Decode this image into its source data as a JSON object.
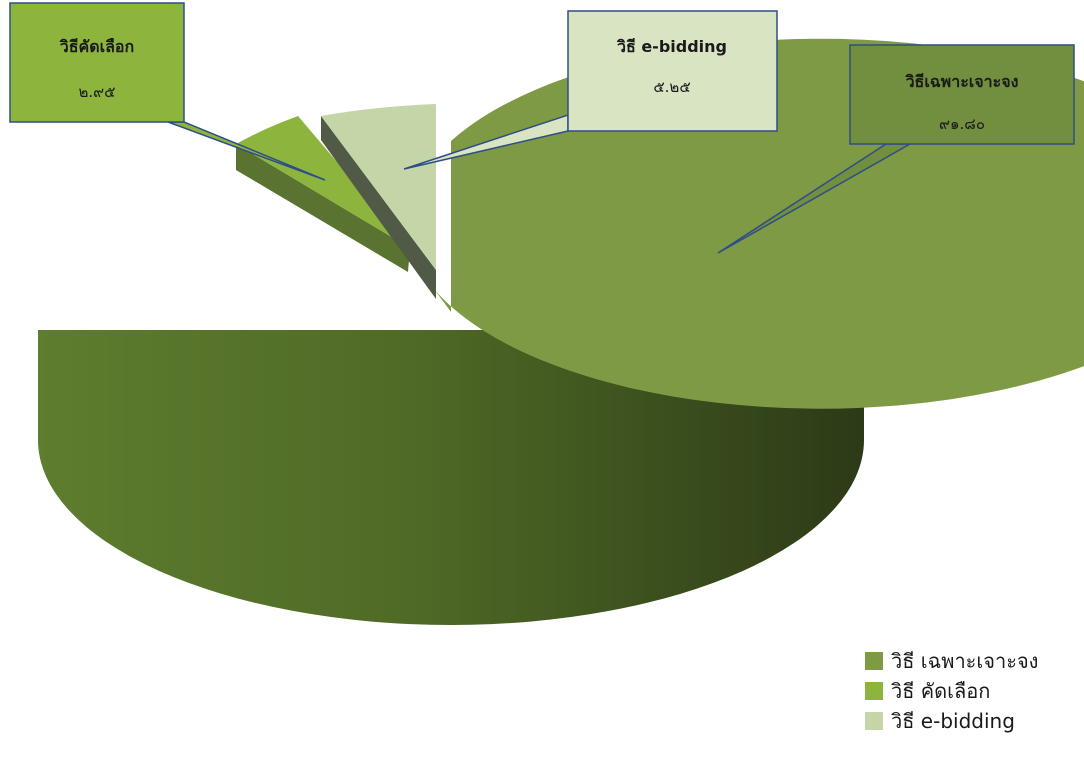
{
  "chart_data": {
    "type": "pie",
    "title": "",
    "slices": [
      {
        "name": "วิธีเฉพาะเจาะจง",
        "legend": "วิธี เฉพาะเจาะจง",
        "value": 91.8,
        "value_label": "๙๑.๘๐",
        "color": "#7F9A44"
      },
      {
        "name": "วิธีคัดเลือก",
        "legend": "วิธี คัดเลือก",
        "value": 2.95,
        "value_label": "๒.๙๕",
        "color": "#8DB53E"
      },
      {
        "name": "วิธี e-bidding",
        "legend": "วิธี e-bidding",
        "value": 5.25,
        "value_label": "๕.๒๕",
        "color": "#C4D6A7"
      }
    ],
    "legend_position": "bottom-right"
  }
}
